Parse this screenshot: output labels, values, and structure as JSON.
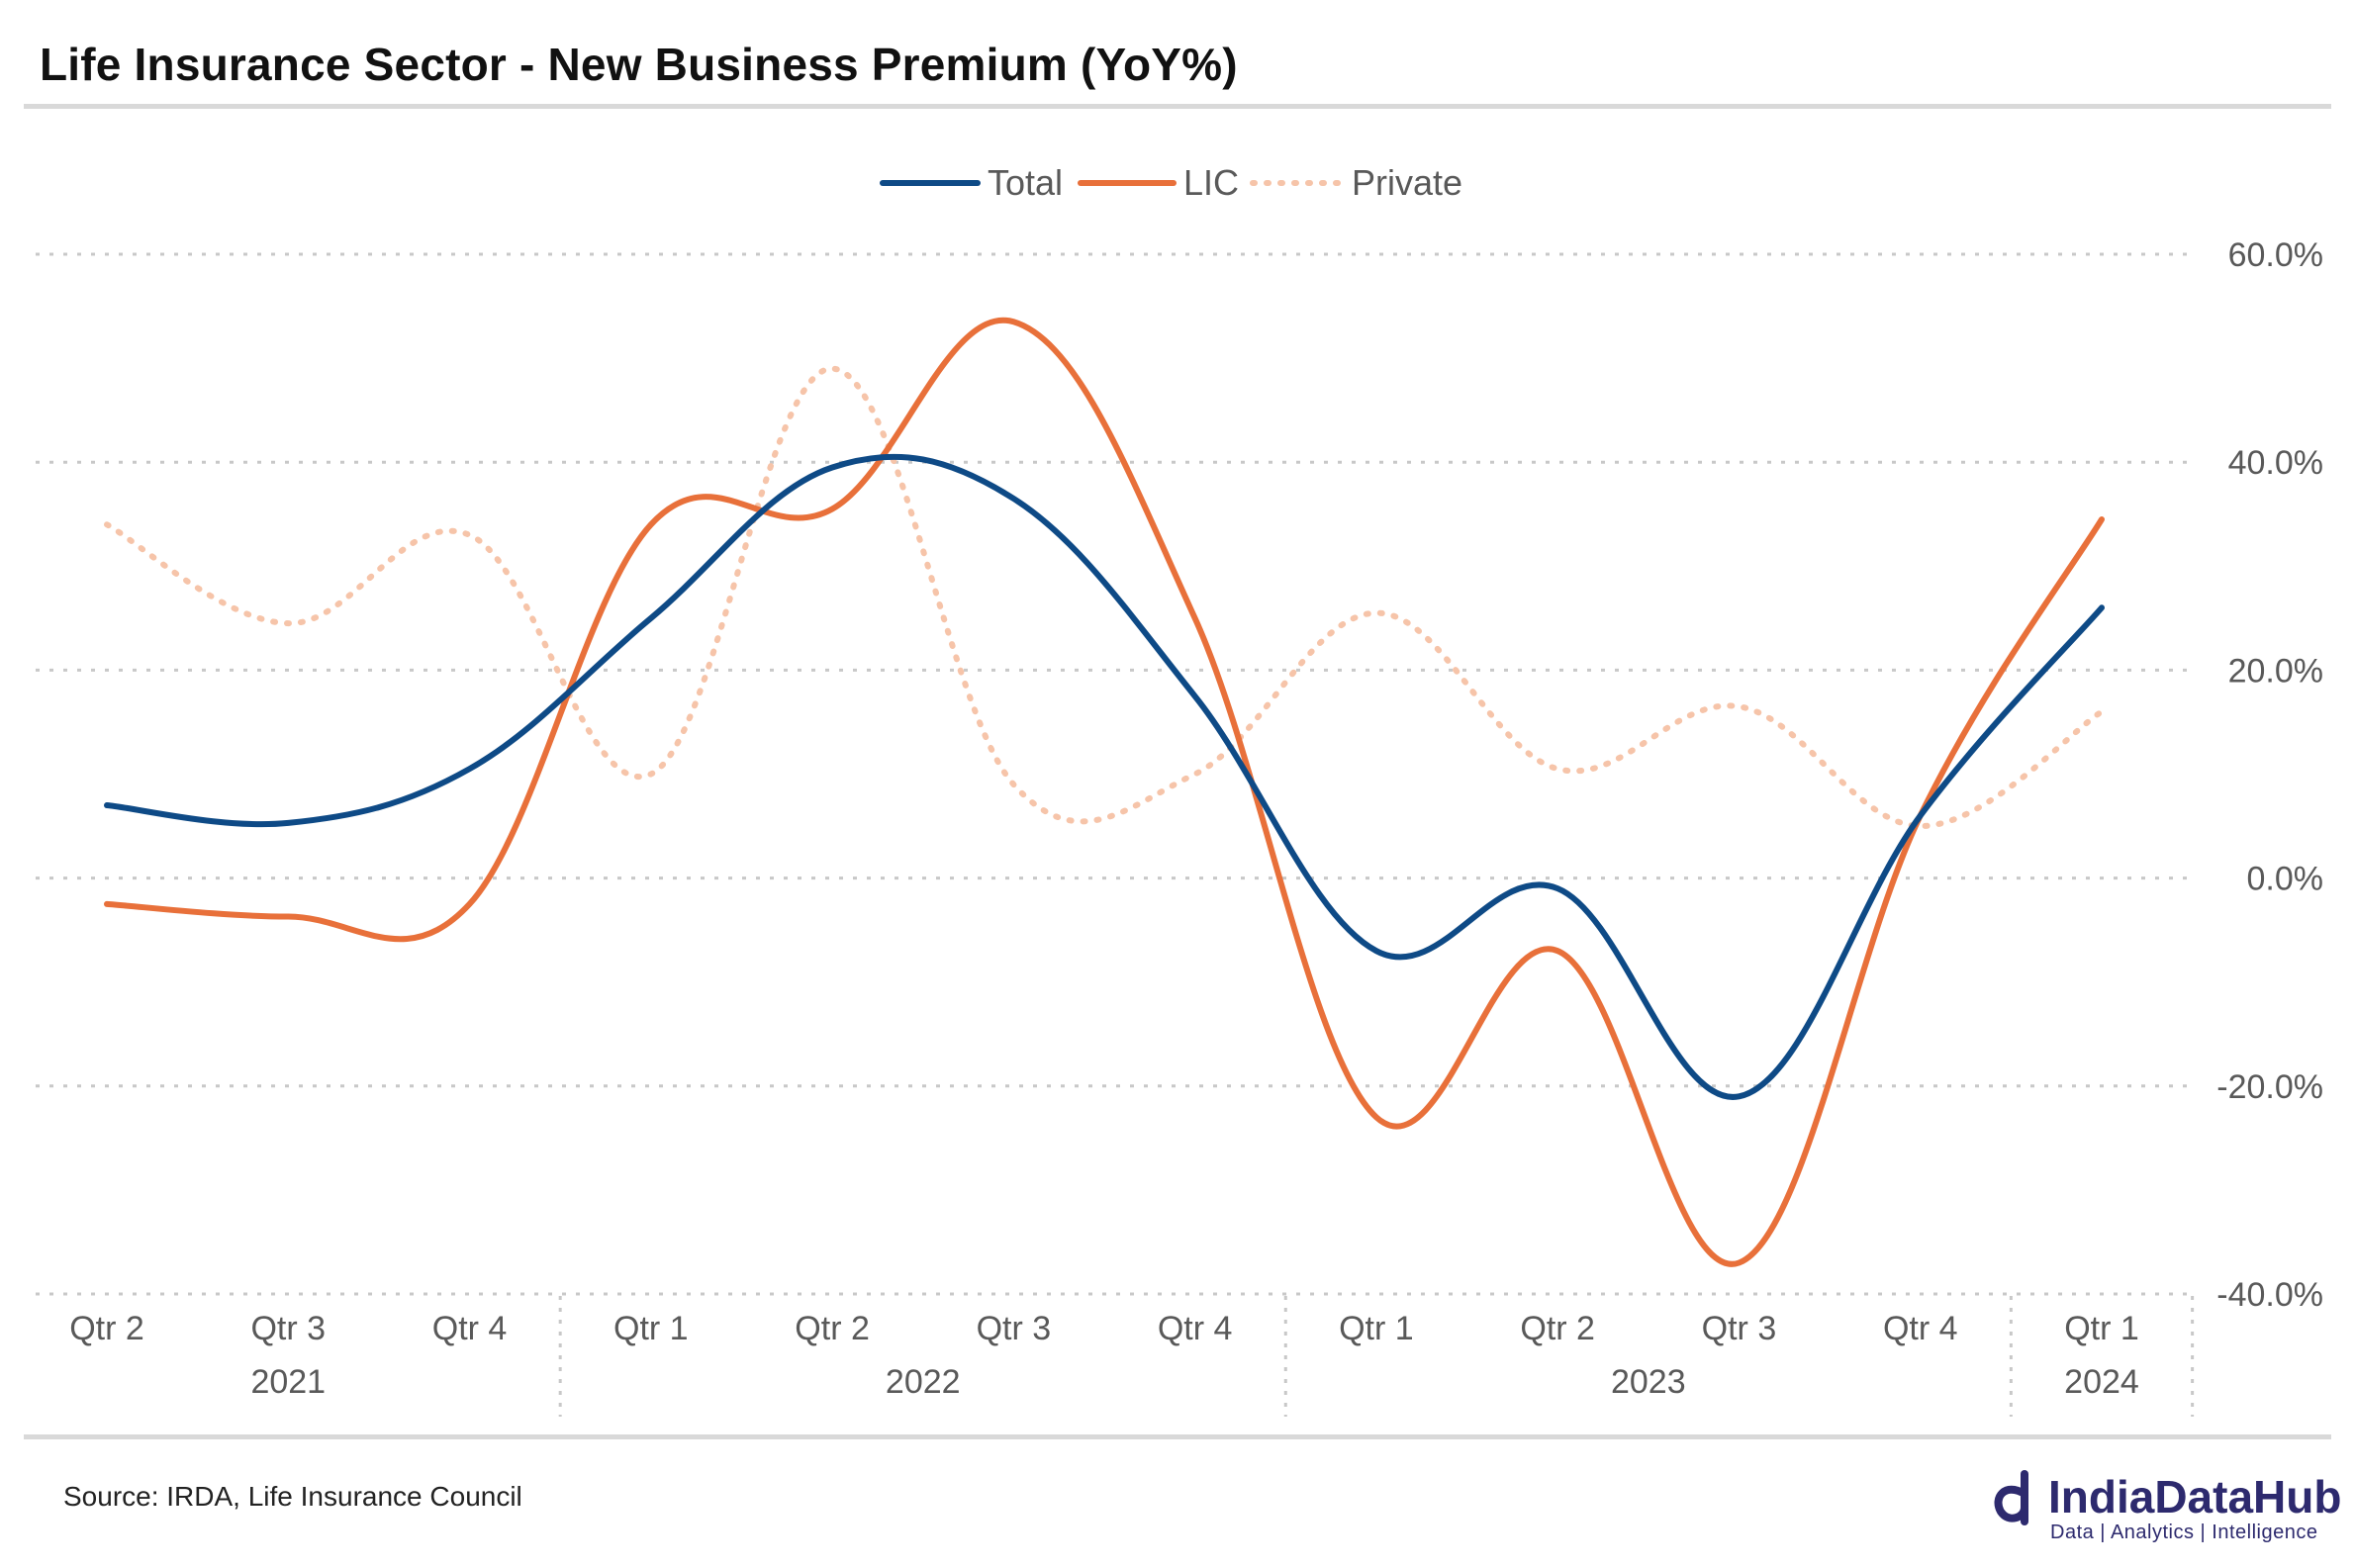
{
  "title": "Life Insurance Sector - New Business Premium (YoY%)",
  "source": "Source: IRDA, Life Insurance Council",
  "logo": {
    "name": "IndiaDataHub",
    "tagline": "Data | Analytics | Intelligence",
    "icon": "india-data-hub-d-icon",
    "color": "#2d2a6e"
  },
  "chart_data": {
    "type": "line",
    "categories": [
      "Qtr 2",
      "Qtr 3",
      "Qtr 4",
      "Qtr 1",
      "Qtr 2",
      "Qtr 3",
      "Qtr 4",
      "Qtr 1",
      "Qtr 2",
      "Qtr 3",
      "Qtr 4",
      "Qtr 1"
    ],
    "year_groups": [
      {
        "label": "2021",
        "count": 3
      },
      {
        "label": "2022",
        "count": 4
      },
      {
        "label": "2023",
        "count": 4
      },
      {
        "label": "2024",
        "count": 1
      }
    ],
    "series": [
      {
        "name": "Total",
        "color": "#0e4a86",
        "style": "solid",
        "values": [
          7.0,
          5.3,
          10.5,
          25.0,
          39.5,
          36.5,
          17.5,
          -7.0,
          -1.0,
          -21.0,
          6.0,
          26.0
        ]
      },
      {
        "name": "LIC",
        "color": "#e8703a",
        "style": "solid",
        "values": [
          -2.5,
          -3.7,
          -2.5,
          34.0,
          35.5,
          53.5,
          25.0,
          -23.0,
          -7.0,
          -37.0,
          6.0,
          34.5
        ]
      },
      {
        "name": "Private",
        "color": "#f6c4a9",
        "style": "dotted",
        "values": [
          34.0,
          24.5,
          33.0,
          10.0,
          49.0,
          9.0,
          10.0,
          25.5,
          10.5,
          16.5,
          5.0,
          16.0
        ]
      }
    ],
    "y_ticks": [
      "60.0%",
      "40.0%",
      "20.0%",
      "0.0%",
      "-20.0%",
      "-40.0%"
    ],
    "ylim": [
      -40,
      60
    ],
    "grid": true,
    "legend_position": "top-center"
  }
}
